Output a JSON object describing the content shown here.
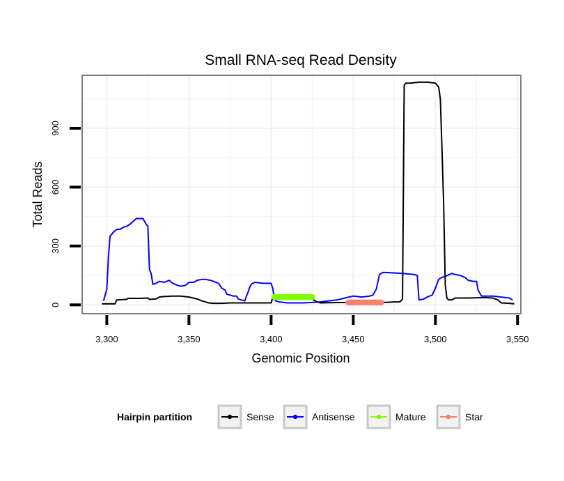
{
  "chart_data": {
    "type": "line",
    "title": "Small RNA-seq Read Density",
    "xlabel": "Genomic Position",
    "ylabel": "Total Reads",
    "xlim": [
      3285,
      3552
    ],
    "ylim": [
      -45,
      1170
    ],
    "x_ticks": [
      3300,
      3350,
      3400,
      3450,
      3500,
      3550
    ],
    "x_tick_labels": [
      "3,300",
      "3,350",
      "3,400",
      "3,450",
      "3,500",
      "3,550"
    ],
    "y_ticks": [
      0,
      300,
      600,
      900
    ],
    "y_tick_labels": [
      "0",
      "300",
      "600",
      "900"
    ],
    "grid": true,
    "legend": {
      "title": "Hairpin partition",
      "position": "bottom",
      "entries": [
        "Sense",
        "Antisense",
        "Mature",
        "Star"
      ]
    },
    "series": [
      {
        "name": "Sense",
        "color": "#000000",
        "style": "line",
        "x": [
          3297,
          3305,
          3306,
          3312,
          3313,
          3320,
          3325,
          3326,
          3330,
          3332,
          3334,
          3340,
          3345,
          3350,
          3355,
          3358,
          3360,
          3362,
          3365,
          3370,
          3375,
          3380,
          3385,
          3390,
          3395,
          3400,
          3401,
          3405,
          3410,
          3415,
          3420,
          3425,
          3428,
          3430,
          3440,
          3450,
          3460,
          3470,
          3475,
          3478,
          3479,
          3480,
          3481,
          3482,
          3485,
          3490,
          3495,
          3500,
          3502,
          3503,
          3504,
          3505,
          3506,
          3507,
          3508,
          3510,
          3512,
          3520,
          3530,
          3535,
          3538,
          3540,
          3545,
          3548
        ],
        "y": [
          5,
          5,
          25,
          28,
          33,
          33,
          35,
          28,
          30,
          40,
          42,
          45,
          45,
          40,
          30,
          20,
          15,
          10,
          8,
          8,
          10,
          10,
          10,
          10,
          10,
          10,
          35,
          35,
          35,
          35,
          35,
          30,
          15,
          10,
          12,
          12,
          13,
          13,
          15,
          15,
          20,
          30,
          1120,
          1130,
          1130,
          1135,
          1135,
          1130,
          1110,
          1050,
          800,
          520,
          100,
          35,
          25,
          25,
          35,
          35,
          37,
          35,
          25,
          10,
          8,
          5
        ]
      },
      {
        "name": "Antisense",
        "color": "#0000ff",
        "style": "line",
        "x": [
          3298,
          3300,
          3301,
          3302,
          3304,
          3306,
          3308,
          3310,
          3312,
          3314,
          3316,
          3318,
          3320,
          3322,
          3323,
          3324,
          3325,
          3326,
          3327,
          3328,
          3330,
          3332,
          3335,
          3338,
          3340,
          3343,
          3345,
          3348,
          3350,
          3353,
          3355,
          3358,
          3360,
          3363,
          3365,
          3368,
          3370,
          3372,
          3373,
          3375,
          3377,
          3379,
          3380,
          3382,
          3384,
          3385,
          3386,
          3387,
          3388,
          3390,
          3395,
          3400,
          3401,
          3402,
          3403,
          3405,
          3410,
          3420,
          3430,
          3440,
          3445,
          3450,
          3455,
          3460,
          3462,
          3464,
          3466,
          3468,
          3470,
          3480,
          3487,
          3489,
          3490,
          3493,
          3495,
          3498,
          3500,
          3502,
          3504,
          3506,
          3510,
          3512,
          3515,
          3518,
          3520,
          3523,
          3525,
          3526,
          3528,
          3530,
          3535,
          3540,
          3545,
          3547
        ],
        "y": [
          20,
          80,
          250,
          350,
          370,
          385,
          385,
          395,
          400,
          410,
          425,
          440,
          440,
          440,
          425,
          410,
          400,
          180,
          160,
          105,
          110,
          120,
          115,
          125,
          110,
          100,
          95,
          100,
          115,
          115,
          125,
          130,
          130,
          125,
          120,
          110,
          85,
          75,
          55,
          50,
          45,
          45,
          30,
          25,
          20,
          45,
          65,
          90,
          105,
          115,
          110,
          110,
          85,
          30,
          20,
          15,
          10,
          10,
          15,
          25,
          35,
          45,
          40,
          45,
          50,
          80,
          155,
          165,
          165,
          160,
          155,
          150,
          25,
          30,
          40,
          50,
          85,
          130,
          140,
          145,
          160,
          155,
          150,
          140,
          125,
          120,
          120,
          75,
          45,
          45,
          45,
          40,
          35,
          25
        ]
      },
      {
        "name": "Mature",
        "color": "#80ff00",
        "style": "points",
        "x": [
          3402,
          3425
        ],
        "y": [
          40,
          40
        ]
      },
      {
        "name": "Star",
        "color": "#fa8072",
        "style": "points",
        "x": [
          3447,
          3467
        ],
        "y": [
          12,
          12
        ]
      }
    ]
  }
}
